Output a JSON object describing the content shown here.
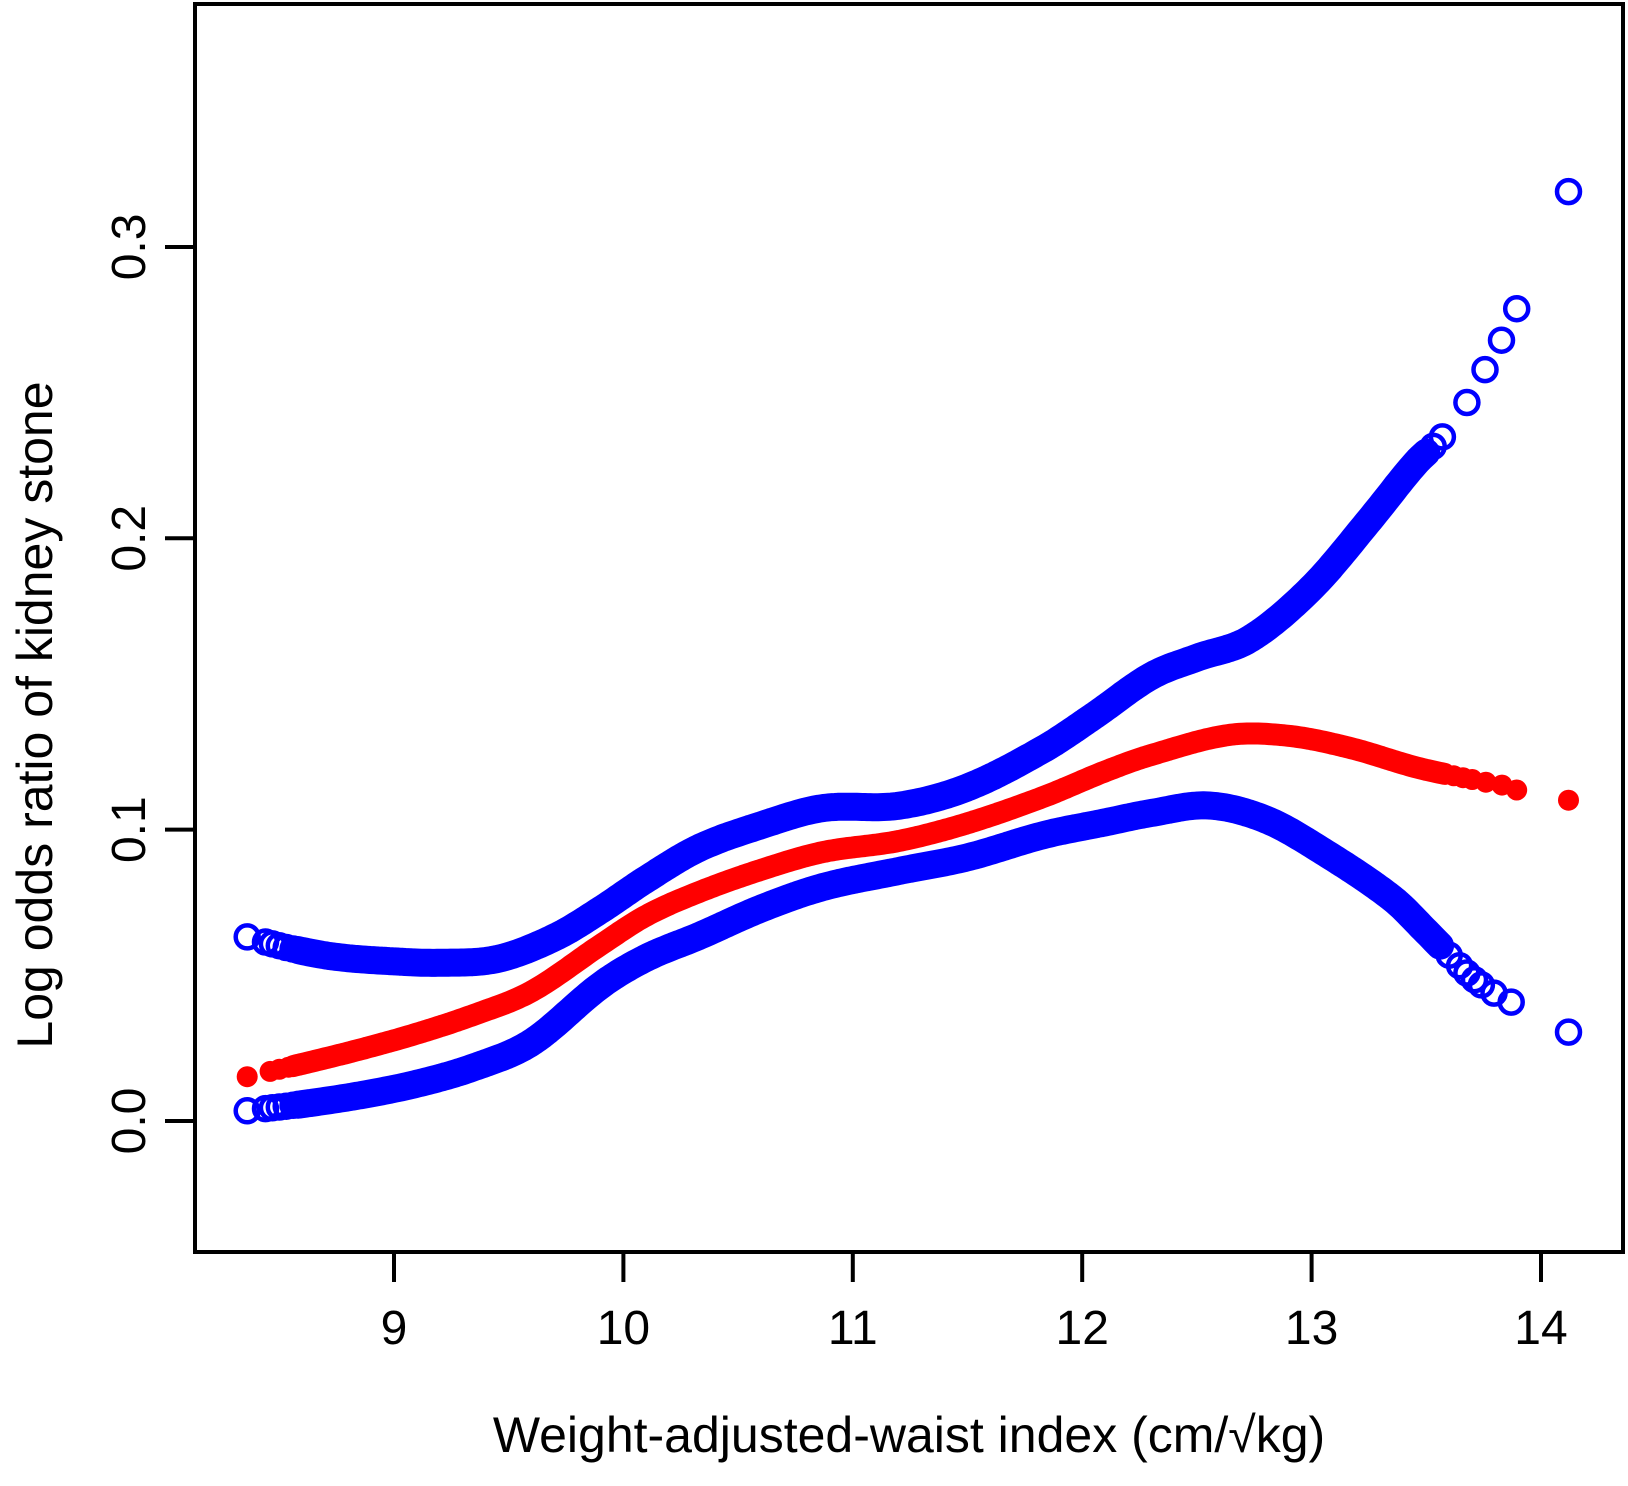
{
  "chart_data": {
    "type": "scatter",
    "title": "",
    "xlabel": "Weight-adjusted-waist index (cm/√kg)",
    "ylabel": "Log odds ratio of kidney stone",
    "x_axis": {
      "ticks": [
        9,
        10,
        11,
        12,
        13,
        14
      ],
      "tick_labels": [
        "9",
        "10",
        "11",
        "12",
        "13",
        "14"
      ],
      "lim": [
        8.13,
        14.36
      ]
    },
    "y_axis": {
      "ticks": [
        0.0,
        0.1,
        0.2,
        0.3
      ],
      "tick_labels": [
        "0.0",
        "0.1",
        "0.2",
        "0.3"
      ],
      "lim": [
        -0.045,
        0.383
      ]
    },
    "grid": false,
    "legend": "none",
    "colors": {
      "estimate": "#FF0000",
      "confidence_band": "#0000FF",
      "axis": "#000000"
    },
    "series": [
      {
        "name": "upper-confidence-band",
        "color": "#0000FF",
        "marker": "open-circle",
        "anchors": [
          [
            8.36,
            0.0632
          ],
          [
            8.55,
            0.0592
          ],
          [
            8.75,
            0.0563
          ],
          [
            9.0,
            0.0548
          ],
          [
            9.2,
            0.0543
          ],
          [
            9.45,
            0.0556
          ],
          [
            9.7,
            0.063
          ],
          [
            9.9,
            0.0724
          ],
          [
            10.1,
            0.083
          ],
          [
            10.33,
            0.0937
          ],
          [
            10.6,
            0.1015
          ],
          [
            10.87,
            0.1074
          ],
          [
            11.2,
            0.1082
          ],
          [
            11.5,
            0.1145
          ],
          [
            11.83,
            0.1276
          ],
          [
            12.05,
            0.139
          ],
          [
            12.3,
            0.1527
          ],
          [
            12.5,
            0.159
          ],
          [
            12.73,
            0.1654
          ],
          [
            13.0,
            0.183
          ],
          [
            13.25,
            0.206
          ],
          [
            13.45,
            0.2255
          ],
          [
            13.57,
            0.2348
          ],
          [
            13.677,
            0.2466
          ],
          [
            13.756,
            0.2579
          ],
          [
            13.828,
            0.268
          ],
          [
            13.894,
            0.2788
          ],
          [
            14.12,
            0.319
          ]
        ],
        "dense_range": [
          8.58,
          13.5
        ],
        "sparse_x": [
          8.36,
          8.44,
          8.47,
          8.5,
          8.53,
          8.56,
          13.53,
          13.57,
          13.677,
          13.756,
          13.828,
          13.894,
          14.12
        ]
      },
      {
        "name": "estimate",
        "color": "#FF0000",
        "marker": "filled-circle",
        "anchors": [
          [
            8.36,
            0.0152
          ],
          [
            8.6,
            0.0196
          ],
          [
            8.85,
            0.0245
          ],
          [
            9.1,
            0.03
          ],
          [
            9.35,
            0.0365
          ],
          [
            9.6,
            0.0445
          ],
          [
            9.9,
            0.0604
          ],
          [
            10.1,
            0.0705
          ],
          [
            10.33,
            0.0786
          ],
          [
            10.6,
            0.0862
          ],
          [
            10.87,
            0.0923
          ],
          [
            11.2,
            0.0961
          ],
          [
            11.5,
            0.1022
          ],
          [
            11.83,
            0.1112
          ],
          [
            12.1,
            0.12
          ],
          [
            12.3,
            0.1256
          ],
          [
            12.64,
            0.1325
          ],
          [
            12.9,
            0.1322
          ],
          [
            13.17,
            0.128
          ],
          [
            13.45,
            0.1215
          ],
          [
            13.65,
            0.118
          ],
          [
            13.76,
            0.1163
          ],
          [
            13.83,
            0.1153
          ],
          [
            13.894,
            0.1136
          ],
          [
            14.12,
            0.1101
          ]
        ],
        "dense_range": [
          8.56,
          13.58
        ],
        "sparse_x": [
          8.36,
          8.46,
          8.5,
          8.54,
          13.62,
          13.66,
          13.7,
          13.76,
          13.83,
          13.894,
          14.12
        ]
      },
      {
        "name": "lower-confidence-band",
        "color": "#0000FF",
        "marker": "open-circle",
        "anchors": [
          [
            8.36,
            0.0035
          ],
          [
            8.6,
            0.0058
          ],
          [
            8.85,
            0.0088
          ],
          [
            9.1,
            0.0128
          ],
          [
            9.35,
            0.0185
          ],
          [
            9.6,
            0.027
          ],
          [
            9.9,
            0.0465
          ],
          [
            10.1,
            0.056
          ],
          [
            10.33,
            0.0635
          ],
          [
            10.6,
            0.0729
          ],
          [
            10.87,
            0.0803
          ],
          [
            11.2,
            0.0858
          ],
          [
            11.5,
            0.0905
          ],
          [
            11.83,
            0.0981
          ],
          [
            12.1,
            0.1025
          ],
          [
            12.3,
            0.1057
          ],
          [
            12.55,
            0.1083
          ],
          [
            12.8,
            0.1035
          ],
          [
            13.05,
            0.0925
          ],
          [
            13.35,
            0.0765
          ],
          [
            13.5,
            0.065
          ],
          [
            13.677,
            0.0508
          ],
          [
            13.74,
            0.0467
          ],
          [
            13.795,
            0.0439
          ],
          [
            13.87,
            0.0408
          ],
          [
            14.12,
            0.0305
          ]
        ],
        "dense_range": [
          8.58,
          13.56
        ],
        "sparse_x": [
          8.36,
          8.44,
          8.47,
          8.5,
          8.53,
          8.56,
          13.6,
          13.645,
          13.677,
          13.71,
          13.74,
          13.795,
          13.87,
          14.12
        ]
      }
    ]
  }
}
